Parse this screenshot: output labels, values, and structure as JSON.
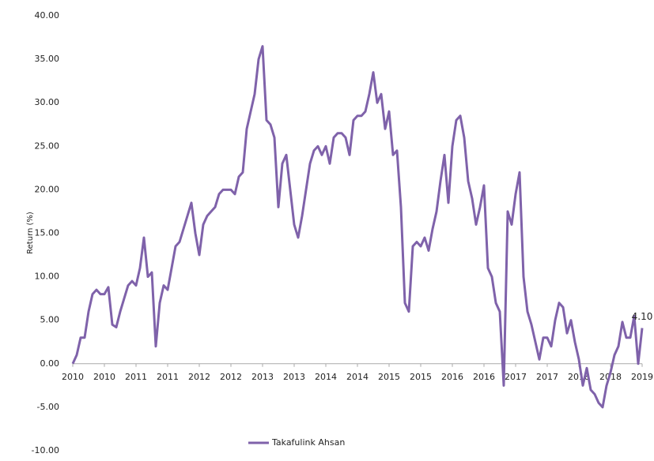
{
  "chart_data": {
    "type": "line",
    "y_label": "Return (%)",
    "categories": [
      "2010",
      null,
      null,
      null,
      null,
      null,
      null,
      null,
      "2010",
      null,
      null,
      null,
      null,
      null,
      null,
      null,
      "2011",
      null,
      null,
      null,
      null,
      null,
      null,
      null,
      "2011",
      null,
      null,
      null,
      null,
      null,
      null,
      null,
      "2012",
      null,
      null,
      null,
      null,
      null,
      null,
      null,
      "2012",
      null,
      null,
      null,
      null,
      null,
      null,
      null,
      "2013",
      null,
      null,
      null,
      null,
      null,
      null,
      null,
      "2013",
      null,
      null,
      null,
      null,
      null,
      null,
      null,
      "2014",
      null,
      null,
      null,
      null,
      null,
      null,
      null,
      "2014",
      null,
      null,
      null,
      null,
      null,
      null,
      null,
      "2015",
      null,
      null,
      null,
      null,
      null,
      null,
      null,
      "2015",
      null,
      null,
      null,
      null,
      null,
      null,
      null,
      "2016",
      null,
      null,
      null,
      null,
      null,
      null,
      null,
      "2016",
      null,
      null,
      null,
      null,
      null,
      null,
      null,
      "2017",
      null,
      null,
      null,
      null,
      null,
      null,
      null,
      "2017",
      null,
      null,
      null,
      null,
      null,
      null,
      null,
      "2018",
      null,
      null,
      null,
      null,
      null,
      null,
      null,
      "2018",
      null,
      null,
      null,
      null,
      null,
      null,
      null,
      "2019"
    ],
    "series": [
      {
        "name": "Takafulink Ahsan",
        "color": "#7f62aa",
        "values": [
          0,
          1,
          3,
          3,
          6,
          8,
          8.5,
          8,
          8,
          8.8,
          4.5,
          4.2,
          6,
          7.5,
          9,
          9.5,
          9,
          11,
          14.5,
          10,
          10.5,
          2,
          7,
          9,
          8.5,
          11,
          13.5,
          14,
          15.5,
          17,
          18.5,
          15,
          12.5,
          16,
          17,
          17.5,
          18,
          19.5,
          20,
          20,
          20,
          19.5,
          21.5,
          22,
          27,
          29,
          31,
          35,
          36.5,
          28,
          27.5,
          26,
          18,
          23,
          24,
          20,
          16,
          14.5,
          17,
          20,
          23,
          24.5,
          25,
          24,
          25,
          23,
          26,
          26.5,
          26.5,
          26,
          24,
          28,
          28.5,
          28.5,
          29,
          31,
          33.5,
          30,
          31,
          27,
          29,
          24,
          24.5,
          18,
          7,
          6,
          13.5,
          14,
          13.5,
          14.5,
          13,
          15.5,
          17.5,
          21,
          24,
          18.5,
          25,
          28,
          28.5,
          26,
          21,
          19,
          16,
          18,
          20.5,
          11,
          10,
          7,
          6,
          -2.5,
          17.5,
          16,
          19.5,
          22,
          10,
          6,
          4.5,
          2.5,
          0.5,
          3,
          3,
          2,
          5,
          7,
          6.5,
          3.5,
          5,
          2.5,
          0.5,
          -2.5,
          -0.5,
          -3,
          -3.5,
          -4.5,
          -5,
          -2.5,
          -1,
          1,
          2,
          4.8,
          3,
          3,
          5.5,
          0,
          4.1
        ],
        "value_labels": [
          null,
          null,
          null,
          null,
          null,
          null,
          null,
          null,
          null,
          null,
          null,
          null,
          null,
          null,
          null,
          null,
          null,
          null,
          null,
          null,
          null,
          null,
          null,
          null,
          null,
          null,
          null,
          null,
          null,
          null,
          null,
          null,
          null,
          null,
          null,
          null,
          null,
          null,
          null,
          null,
          null,
          null,
          null,
          null,
          null,
          null,
          null,
          null,
          null,
          null,
          null,
          null,
          null,
          null,
          null,
          null,
          null,
          null,
          null,
          null,
          null,
          null,
          null,
          null,
          null,
          null,
          null,
          null,
          null,
          null,
          null,
          null,
          null,
          null,
          null,
          null,
          null,
          null,
          null,
          null,
          null,
          null,
          null,
          null,
          null,
          null,
          null,
          null,
          null,
          null,
          null,
          null,
          null,
          null,
          null,
          null,
          null,
          null,
          null,
          null,
          null,
          null,
          null,
          null,
          null,
          null,
          null,
          null,
          null,
          null,
          null,
          null,
          null,
          null,
          null,
          null,
          null,
          null,
          null,
          null,
          null,
          null,
          null,
          null,
          null,
          null,
          null,
          null,
          null,
          null,
          null,
          null,
          null,
          null,
          null,
          null,
          null,
          null,
          null,
          null,
          null,
          null,
          null,
          null,
          "4.10"
        ]
      }
    ],
    "ylim": [
      -10,
      40
    ],
    "yticks": [
      {
        "value": -10,
        "label": "-10.00"
      },
      {
        "value": -5,
        "label": "-5.00"
      },
      {
        "value": 0,
        "label": "0.00"
      },
      {
        "value": 5,
        "label": "5.00"
      },
      {
        "value": 10,
        "label": "10.00"
      },
      {
        "value": 15,
        "label": "15.00"
      },
      {
        "value": 20,
        "label": "20.00"
      },
      {
        "value": 25,
        "label": "25.00"
      },
      {
        "value": 30,
        "label": "30.00"
      },
      {
        "value": 35,
        "label": "35.00"
      },
      {
        "value": 40,
        "label": "40.00"
      }
    ],
    "grid": false,
    "legend": "bottom"
  }
}
